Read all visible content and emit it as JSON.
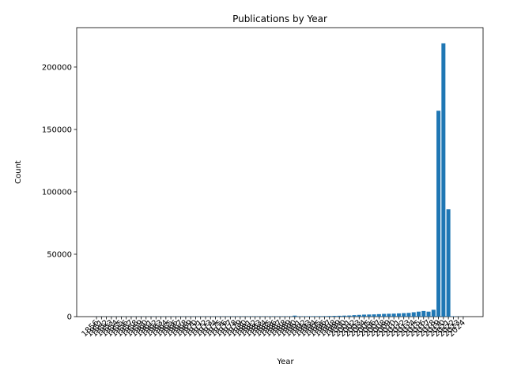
{
  "chart_data": {
    "type": "bar",
    "title": "Publications by Year",
    "x_label": "Year",
    "y_label": "Count",
    "categories": [
      "1856",
      "1951",
      "1952",
      "1953",
      "1954",
      "1955",
      "1956",
      "1957",
      "1958",
      "1959",
      "1960",
      "1961",
      "1962",
      "1963",
      "1964",
      "1965",
      "1966",
      "1967",
      "1968",
      "1969",
      "1970",
      "1971",
      "1972",
      "1973",
      "1974",
      "1975",
      "1976",
      "1977",
      "1978",
      "1979",
      "1980",
      "1981",
      "1982",
      "1983",
      "1984",
      "1985",
      "1986",
      "1987",
      "1988",
      "1989",
      "1990",
      "1991",
      "1992",
      "1993",
      "1994",
      "1995",
      "1996",
      "1997",
      "1998",
      "1999",
      "2000",
      "2001",
      "2002",
      "2003",
      "2004",
      "2005",
      "2006",
      "2007",
      "2008",
      "2009",
      "2010",
      "2011",
      "2012",
      "2013",
      "2014",
      "2015",
      "2016",
      "2017",
      "2018",
      "2019",
      "2020",
      "2021",
      "2022",
      "2023",
      "2024"
    ],
    "values": [
      50,
      60,
      60,
      70,
      70,
      80,
      80,
      90,
      90,
      100,
      100,
      110,
      110,
      120,
      120,
      130,
      130,
      140,
      140,
      150,
      150,
      160,
      160,
      170,
      170,
      180,
      180,
      190,
      190,
      200,
      200,
      210,
      210,
      220,
      220,
      230,
      230,
      240,
      250,
      260,
      800,
      300,
      320,
      340,
      360,
      380,
      400,
      500,
      600,
      700,
      800,
      900,
      1200,
      1400,
      1600,
      1700,
      1800,
      2000,
      2200,
      2300,
      2400,
      2600,
      2800,
      3000,
      3500,
      4000,
      4500,
      4000,
      5500,
      165000,
      219000,
      86000,
      300,
      100,
      50
    ],
    "color": "#1f77b4",
    "ylim": [
      0,
      231600
    ],
    "yticks": [
      0,
      50000,
      100000,
      150000,
      200000
    ]
  }
}
